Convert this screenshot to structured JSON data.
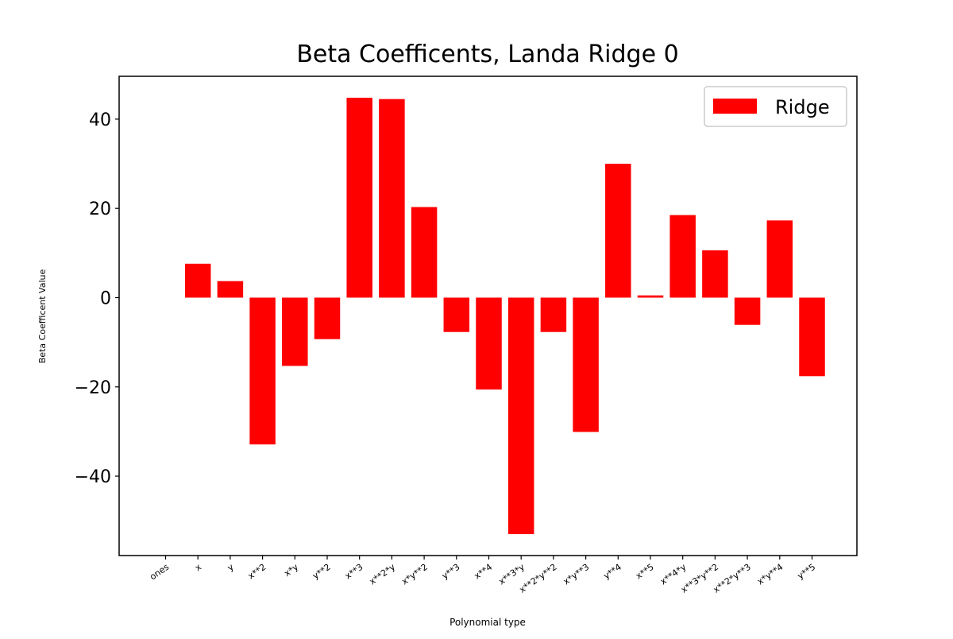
{
  "chart_data": {
    "type": "bar",
    "title": "Beta Coefficents, Landa Ridge 0",
    "xlabel": "Polynomial type",
    "ylabel": "Beta Coefficent Value",
    "categories": [
      "ones",
      "x",
      "y",
      "x**2",
      "x*y",
      "y**2",
      "x**3",
      "x**2*y",
      "x*y**2",
      "y**3",
      "x**4",
      "x**3*y",
      "x**2*y**2",
      "x*y**3",
      "y**4",
      "x**5",
      "x**4*y",
      "x**3*y**2",
      "x**2*y**3",
      "x*y**4",
      "y**5"
    ],
    "series": [
      {
        "name": "Ridge",
        "color": "#ff0000",
        "values": [
          0,
          7.6,
          3.7,
          -32.9,
          -15.3,
          -9.3,
          44.8,
          44.5,
          20.3,
          -7.7,
          -20.6,
          -53.0,
          -7.7,
          -30.1,
          30.0,
          0.5,
          18.5,
          10.6,
          -6.1,
          17.3,
          -17.6
        ]
      }
    ],
    "ylim": [
      -57.8,
      49.6
    ],
    "yticks": [
      -40,
      -20,
      0,
      20,
      40
    ],
    "legend_position": "top-right",
    "grid": false
  }
}
